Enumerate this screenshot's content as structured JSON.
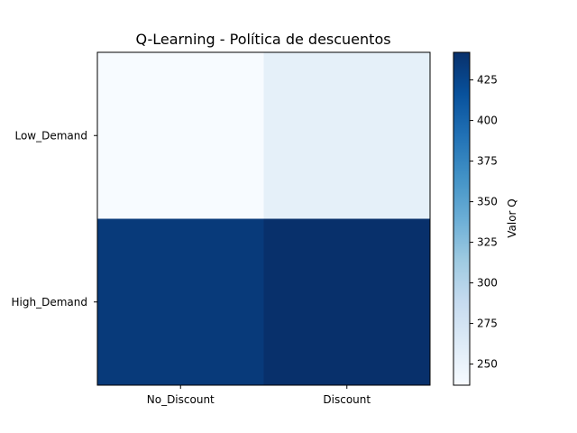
{
  "chart_data": {
    "type": "heatmap",
    "title": "Q-Learning - Política de descuentos",
    "x_categories": [
      "No_Discount",
      "Discount"
    ],
    "y_categories": [
      "Low_Demand",
      "High_Demand"
    ],
    "values": [
      [
        237,
        255
      ],
      [
        434,
        442
      ]
    ],
    "colormap": "Blues",
    "colorbar": {
      "label": "Valor Q",
      "range": [
        237,
        442
      ],
      "ticks": [
        "250",
        "275",
        "300",
        "325",
        "350",
        "375",
        "400",
        "425"
      ]
    }
  }
}
